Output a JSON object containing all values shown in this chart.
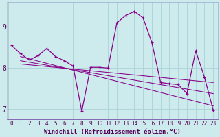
{
  "xlabel": "Windchill (Refroidissement éolien,°C)",
  "background_color": "#cdeaed",
  "line_color": "#880088",
  "grid_color": "#aad4d8",
  "hours": [
    0,
    1,
    2,
    3,
    4,
    5,
    6,
    7,
    8,
    9,
    10,
    11,
    12,
    13,
    14,
    15,
    16,
    17,
    18,
    19,
    20,
    21,
    22,
    23
  ],
  "main_series": [
    8.55,
    8.35,
    8.2,
    8.3,
    8.48,
    8.28,
    8.18,
    8.05,
    6.95,
    8.02,
    8.02,
    8.0,
    9.1,
    9.28,
    9.38,
    9.22,
    8.62,
    7.65,
    7.62,
    7.6,
    7.38,
    8.42,
    7.78,
    6.98
  ],
  "trend1_x": [
    1,
    23
  ],
  "trend1_y": [
    8.28,
    7.08
  ],
  "trend2_x": [
    1,
    23
  ],
  "trend2_y": [
    8.18,
    7.38
  ],
  "trend3_x": [
    1,
    23
  ],
  "trend3_y": [
    8.1,
    7.65
  ],
  "ylim": [
    6.75,
    9.6
  ],
  "xlim": [
    -0.5,
    23.5
  ],
  "yticks": [
    7,
    8,
    9
  ],
  "xtick_labels": [
    "0",
    "1",
    "2",
    "3",
    "4",
    "5",
    "6",
    "7",
    "8",
    "9",
    "10",
    "11",
    "12",
    "13",
    "14",
    "15",
    "16",
    "17",
    "18",
    "19",
    "20",
    "21",
    "22",
    "23"
  ],
  "label_fontsize": 6.5,
  "tick_fontsize": 5.5
}
